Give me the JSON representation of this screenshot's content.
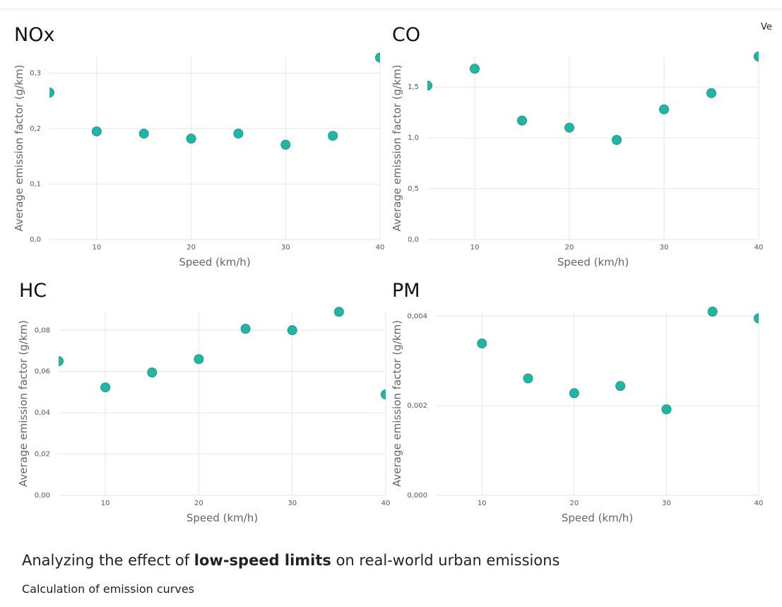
{
  "corner_text": "Ve",
  "chart_data": [
    {
      "type": "scatter",
      "title": "NOx",
      "x_label": "Speed (km/h)",
      "y_label": "Average emission factor (g/km)",
      "x": [
        5,
        10,
        15,
        20,
        25,
        30,
        35,
        40
      ],
      "values": [
        0.265,
        0.195,
        0.191,
        0.182,
        0.191,
        0.171,
        0.187,
        0.328
      ],
      "color": "#22b5a5",
      "xlim": [
        5,
        40
      ],
      "xticks": [
        10,
        20,
        30,
        40
      ],
      "ylim": [
        0,
        0.33
      ],
      "yticks": [
        {
          "value": 0,
          "label": "0,0"
        },
        {
          "value": 0.1,
          "label": "0,1"
        },
        {
          "value": 0.2,
          "label": "0,2"
        },
        {
          "value": 0.3,
          "label": "0,3"
        }
      ],
      "grid": true
    },
    {
      "type": "scatter",
      "title": "CO",
      "x_label": "Speed (km/h)",
      "y_label": "Average emission factor (g/km)",
      "x": [
        5,
        10,
        15,
        20,
        25,
        30,
        35,
        40
      ],
      "values": [
        1.514,
        1.68,
        1.17,
        1.1,
        0.98,
        1.28,
        1.44,
        1.8
      ],
      "color": "#22b5a5",
      "xlim": [
        5,
        40
      ],
      "xticks": [
        10,
        20,
        30,
        40
      ],
      "ylim": [
        0,
        1.8
      ],
      "yticks": [
        {
          "value": 0,
          "label": "0,0"
        },
        {
          "value": 0.5,
          "label": "0,5"
        },
        {
          "value": 1,
          "label": "1,0"
        },
        {
          "value": 1.5,
          "label": "1,5"
        }
      ],
      "grid": true
    },
    {
      "type": "scatter",
      "title": "HC",
      "x_label": "Speed (km/h)",
      "y_label": "Average emission factor (g/km)",
      "x": [
        5,
        10,
        15,
        20,
        25,
        30,
        35,
        40
      ],
      "values": [
        0.065,
        0.0523,
        0.0595,
        0.066,
        0.0807,
        0.08,
        0.0889,
        0.0489
      ],
      "color": "#22b5a5",
      "xlim": [
        5,
        40
      ],
      "xticks": [
        10,
        20,
        30,
        40
      ],
      "ylim": [
        0,
        0.089
      ],
      "yticks": [
        {
          "value": 0,
          "label": "0,00"
        },
        {
          "value": 0.02,
          "label": "0,02"
        },
        {
          "value": 0.04,
          "label": "0,04"
        },
        {
          "value": 0.06,
          "label": "0,06"
        },
        {
          "value": 0.08,
          "label": "0,08"
        }
      ],
      "grid": true
    },
    {
      "type": "scatter",
      "title": "PM",
      "x_label": "Speed (km/h)",
      "y_label": "Average emission factor (g/km)",
      "x": [
        10,
        15,
        20,
        25,
        30,
        35,
        40
      ],
      "values": [
        0.00339,
        0.00261,
        0.00228,
        0.00244,
        0.00192,
        0.0041,
        0.00395
      ],
      "color": "#22b5a5",
      "xlim": [
        5,
        40
      ],
      "xticks": [
        10,
        20,
        30,
        40
      ],
      "ylim": [
        0,
        0.0041
      ],
      "yticks": [
        {
          "value": 0,
          "label": "0,000"
        },
        {
          "value": 0.002,
          "label": "0,002"
        },
        {
          "value": 0.004,
          "label": "0,004"
        }
      ],
      "grid": true
    }
  ],
  "footer": {
    "heading": [
      "Analyzing the effect of ",
      "low-speed limits",
      " on real-world urban emissions"
    ],
    "subheading": "Calculation of emission curves"
  }
}
